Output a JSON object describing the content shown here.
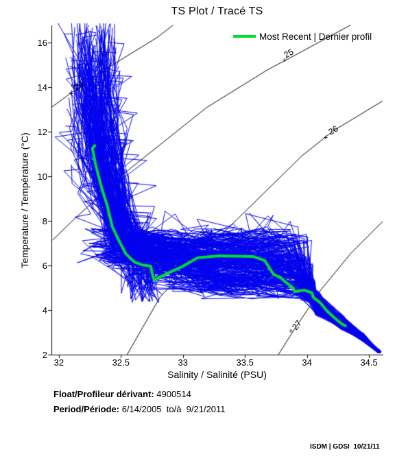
{
  "annotations": {
    "float_label": "Float/Profileur dérivant:",
    "float_value": " 4900514",
    "period_label": "Period/Période:",
    "period_value": " 6/14/2005  to/à  9/21/2011"
  },
  "footer": {
    "credit": "ISDM | GDSI  10/21/11"
  },
  "chart_data": {
    "type": "line",
    "title": "TS Plot / Tracé TS",
    "xlabel": "Salinity / Salinité (PSU)",
    "ylabel": "Temperature / Température (°C)",
    "xlim": [
      31.94,
      34.61
    ],
    "ylim": [
      2,
      16.77
    ],
    "x_ticks": [
      32,
      32.5,
      33,
      33.5,
      34,
      34.5
    ],
    "y_ticks": [
      2,
      4,
      6,
      8,
      10,
      12,
      14,
      16
    ],
    "grid": false,
    "legend_position": "top-right",
    "colors": {
      "profiles": "#0000ee",
      "most_recent": "#00dd30",
      "isopycnals": "#000000",
      "axis": "#000000"
    },
    "isopycnals": [
      {
        "label": "24",
        "angle": -33,
        "points": [
          [
            31.93,
            13.05
          ],
          [
            32.1,
            13.75
          ],
          [
            32.41,
            14.92
          ],
          [
            32.79,
            16.22
          ],
          [
            32.92,
            16.78
          ]
        ],
        "label_at": [
          32.16,
          14.05
        ],
        "plus_at": [
          32.1,
          13.7
        ]
      },
      {
        "label": "25",
        "angle": -29,
        "points": [
          [
            31.95,
            7.14
          ],
          [
            32.12,
            8.06
          ],
          [
            32.51,
            10.06
          ],
          [
            33.19,
            13.08
          ],
          [
            33.68,
            14.77
          ],
          [
            33.96,
            15.6
          ],
          [
            34.35,
            16.78
          ]
        ],
        "label_at": [
          33.85,
          15.5
        ],
        "plus_at": [
          33.82,
          15.2
        ]
      },
      {
        "label": "26",
        "angle": -31,
        "points": [
          [
            32.55,
            2.0
          ],
          [
            32.82,
            4.62
          ],
          [
            33.35,
            7.6
          ],
          [
            33.96,
            10.92
          ],
          [
            34.21,
            12.03
          ],
          [
            34.61,
            13.38
          ]
        ],
        "label_at": [
          34.21,
          12.06
        ],
        "plus_at": [
          34.15,
          11.72
        ]
      },
      {
        "label": "27",
        "angle": -52,
        "points": [
          [
            33.77,
            2.0
          ],
          [
            33.88,
            2.98
          ],
          [
            34.11,
            4.89
          ],
          [
            34.35,
            6.52
          ],
          [
            34.61,
            7.97
          ]
        ],
        "label_at": [
          33.92,
          3.32
        ],
        "plus_at": [
          33.87,
          3.04
        ]
      }
    ],
    "most_recent_profile": {
      "name": "Most Recent | Dernier profil",
      "color": "#00dd30",
      "points": [
        [
          32.29,
          11.38
        ],
        [
          32.27,
          11.25
        ],
        [
          32.3,
          10.43
        ],
        [
          32.35,
          9.38
        ],
        [
          32.39,
          8.68
        ],
        [
          32.43,
          7.75
        ],
        [
          32.49,
          7.05
        ],
        [
          32.54,
          6.52
        ],
        [
          32.61,
          6.15
        ],
        [
          32.67,
          6.03
        ],
        [
          32.74,
          5.97
        ],
        [
          32.76,
          5.48
        ],
        [
          32.77,
          5.35
        ],
        [
          32.88,
          5.66
        ],
        [
          32.99,
          5.94
        ],
        [
          33.12,
          6.35
        ],
        [
          33.29,
          6.43
        ],
        [
          33.57,
          6.4
        ],
        [
          33.66,
          6.22
        ],
        [
          33.73,
          5.6
        ],
        [
          33.79,
          5.45
        ],
        [
          33.82,
          5.29
        ],
        [
          33.89,
          4.98
        ],
        [
          33.9,
          4.83
        ],
        [
          33.98,
          4.89
        ],
        [
          34.04,
          4.77
        ],
        [
          34.05,
          4.58
        ],
        [
          34.11,
          4.31
        ],
        [
          34.16,
          3.97
        ],
        [
          34.22,
          3.66
        ],
        [
          34.28,
          3.38
        ],
        [
          34.31,
          3.29
        ]
      ]
    },
    "profile_ensemble": {
      "count": 220,
      "seed": 4900514,
      "color": "#0000ee",
      "surface_S": [
        32.06,
        32.46
      ],
      "surface_T": [
        9.8,
        17.1
      ],
      "thermocline_base_T": [
        6.2,
        7.6
      ],
      "thermocline_base_S": [
        32.42,
        32.68
      ],
      "band_T": [
        4.8,
        7.4
      ],
      "band_end_S": [
        33.78,
        34.05
      ],
      "deep_backbone": [
        [
          34.08,
          4.3,
          0.55
        ],
        [
          34.28,
          3.45,
          0.3
        ],
        [
          34.44,
          2.82,
          0.16
        ],
        [
          34.583,
          2.12,
          0.05
        ]
      ]
    }
  }
}
